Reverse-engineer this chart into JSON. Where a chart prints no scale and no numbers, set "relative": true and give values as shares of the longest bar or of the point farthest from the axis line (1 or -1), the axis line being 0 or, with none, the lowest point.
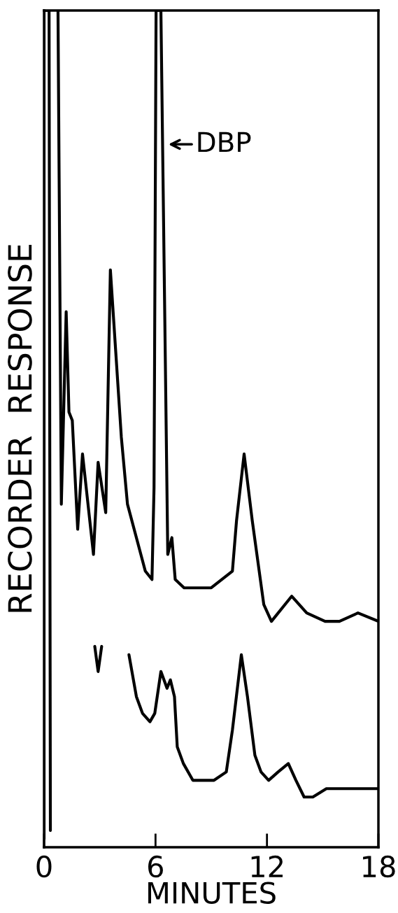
{
  "chart_data": {
    "type": "line",
    "relative": true,
    "xlabel": "MINUTES",
    "ylabel": "RECORDER  RESPONSE",
    "xlim": [
      0,
      18
    ],
    "xticks": [
      0,
      6,
      12,
      18
    ],
    "tick_labels": "x",
    "grid": false,
    "legend": false,
    "marker": "none",
    "line_style": "solid",
    "annotations": [
      {
        "text": "DBP",
        "x": 6.59,
        "y": 0.84
      }
    ],
    "series": [
      {
        "color": "#000000",
        "x": [
          0.75,
          0.93,
          1.19,
          1.34,
          1.52,
          1.81,
          2.07,
          2.66,
          2.91,
          3.32,
          3.57,
          4.16,
          4.49,
          5.45,
          5.81,
          5.92,
          6.03,
          6.29,
          6.66,
          6.88,
          7.06,
          7.54,
          9.0,
          10.14,
          10.36,
          10.77,
          11.21,
          11.83,
          12.24,
          13.33,
          14.14,
          15.13,
          15.9,
          16.9,
          18.0
        ],
        "values": [
          1.0,
          0.41,
          0.64,
          0.52,
          0.51,
          0.38,
          0.47,
          0.35,
          0.46,
          0.4,
          0.69,
          0.49,
          0.41,
          0.33,
          0.32,
          0.43,
          1.0,
          1.0,
          0.35,
          0.37,
          0.32,
          0.31,
          0.31,
          0.33,
          0.39,
          0.47,
          0.39,
          0.29,
          0.27,
          0.3,
          0.28,
          0.27,
          0.27,
          0.28,
          0.27
        ]
      },
      {
        "color": "#000000",
        "x": [
          0,
          0,
          0.27,
          0.34,
          0.5,
          2.73,
          2.91,
          3.1,
          3.5,
          4.57,
          4.97,
          5.3,
          5.7,
          5.96,
          6.29,
          6.62,
          6.8,
          7.02,
          7.17,
          7.5,
          8.01,
          9.15,
          9.81,
          10.14,
          10.62,
          10.95,
          11.35,
          11.68,
          12.09,
          12.6,
          13.15,
          13.56,
          14.0,
          14.47,
          15.2,
          16.09,
          16.93,
          18.0
        ],
        "values": [
          0.01,
          1.0,
          1.0,
          0.02,
          null,
          0.24,
          0.21,
          0.24,
          null,
          0.23,
          0.18,
          0.16,
          0.15,
          0.16,
          0.21,
          0.19,
          0.2,
          0.18,
          0.12,
          0.1,
          0.08,
          0.08,
          0.09,
          0.14,
          0.23,
          0.18,
          0.11,
          0.09,
          0.08,
          0.09,
          0.1,
          0.08,
          0.06,
          0.06,
          0.07,
          0.07,
          0.07,
          0.07
        ]
      }
    ]
  }
}
